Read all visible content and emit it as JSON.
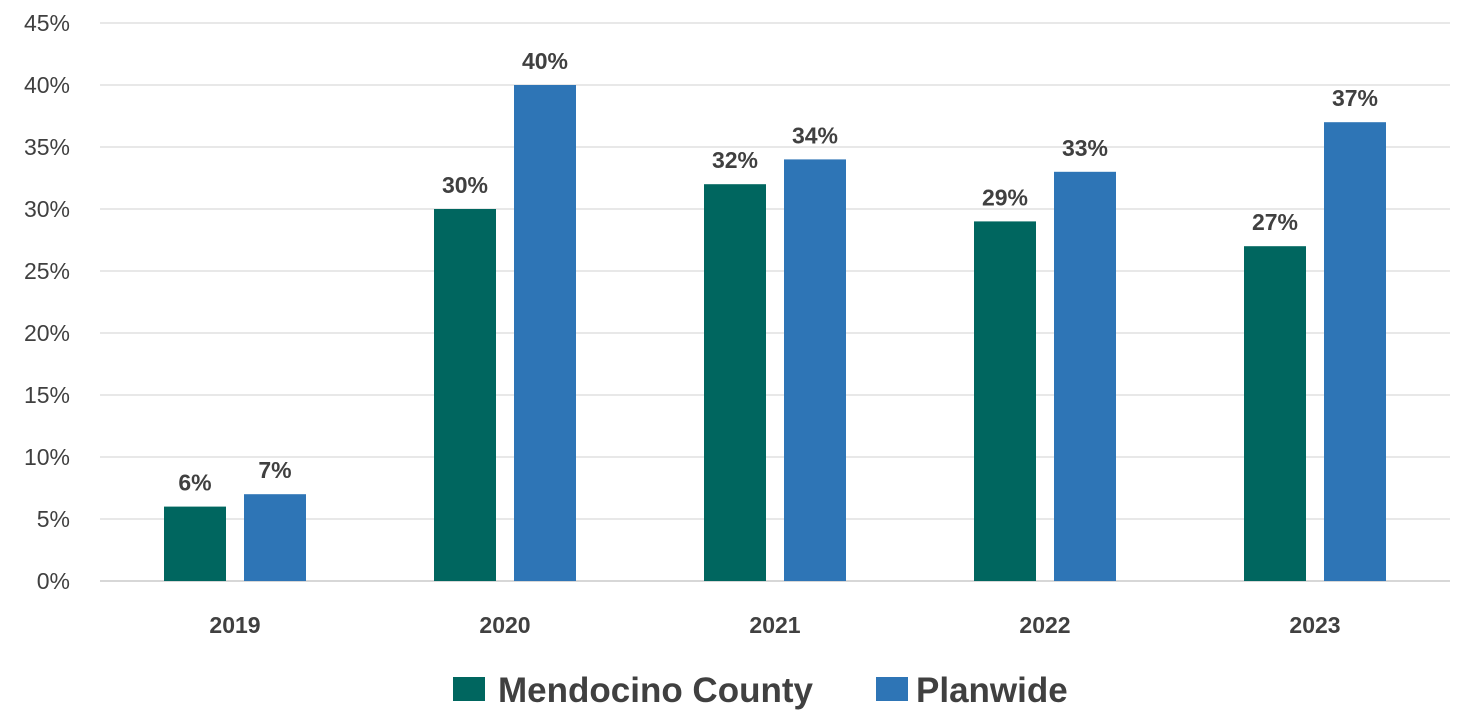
{
  "chart_data": {
    "type": "bar",
    "categories": [
      "2019",
      "2020",
      "2021",
      "2022",
      "2023"
    ],
    "series": [
      {
        "name": "Mendocino County",
        "color": "#00665f",
        "values": [
          6,
          30,
          32,
          29,
          27
        ],
        "labels": [
          "6%",
          "30%",
          "32%",
          "29%",
          "27%"
        ]
      },
      {
        "name": "Planwide",
        "color": "#2e75b6",
        "values": [
          7,
          40,
          34,
          33,
          37
        ],
        "labels": [
          "7%",
          "40%",
          "34%",
          "33%",
          "37%"
        ]
      }
    ],
    "ylim": [
      0,
      45
    ],
    "yticks": [
      0,
      5,
      10,
      15,
      20,
      25,
      30,
      35,
      40,
      45
    ],
    "ytick_labels": [
      "0%",
      "5%",
      "10%",
      "15%",
      "20%",
      "25%",
      "30%",
      "35%",
      "40%",
      "45%"
    ],
    "grid": true,
    "legend_position": "bottom",
    "title": "",
    "xlabel": "",
    "ylabel": ""
  }
}
